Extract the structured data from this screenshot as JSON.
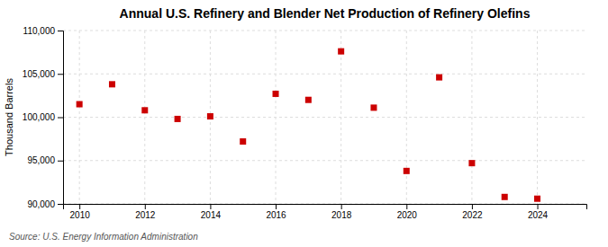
{
  "chart_data": {
    "type": "scatter",
    "title": "Annual U.S. Refinery and Blender Net Production of Refinery Olefins",
    "ylabel": "Thousand Barrels",
    "source": "Source: U.S. Energy Information Administration",
    "x": [
      2010,
      2011,
      2012,
      2013,
      2014,
      2015,
      2016,
      2017,
      2018,
      2019,
      2020,
      2021,
      2022,
      2023,
      2024
    ],
    "values": [
      101500,
      103800,
      100800,
      99800,
      100100,
      97200,
      102700,
      102000,
      107600,
      101100,
      93800,
      104600,
      94700,
      90800,
      90600
    ],
    "color": "#cc0000",
    "marker": "square",
    "xlim": [
      2009.5,
      2025.5
    ],
    "xticks": [
      2010,
      2012,
      2014,
      2016,
      2018,
      2020,
      2022,
      2024
    ],
    "ylim": [
      90000,
      110000
    ],
    "yticks": [
      {
        "value": 90000,
        "label": "90,000"
      },
      {
        "value": 95000,
        "label": "95,000"
      },
      {
        "value": 100000,
        "label": "100,000"
      },
      {
        "value": 105000,
        "label": "105,000"
      },
      {
        "value": 110000,
        "label": "110,000"
      }
    ],
    "grid": true
  }
}
